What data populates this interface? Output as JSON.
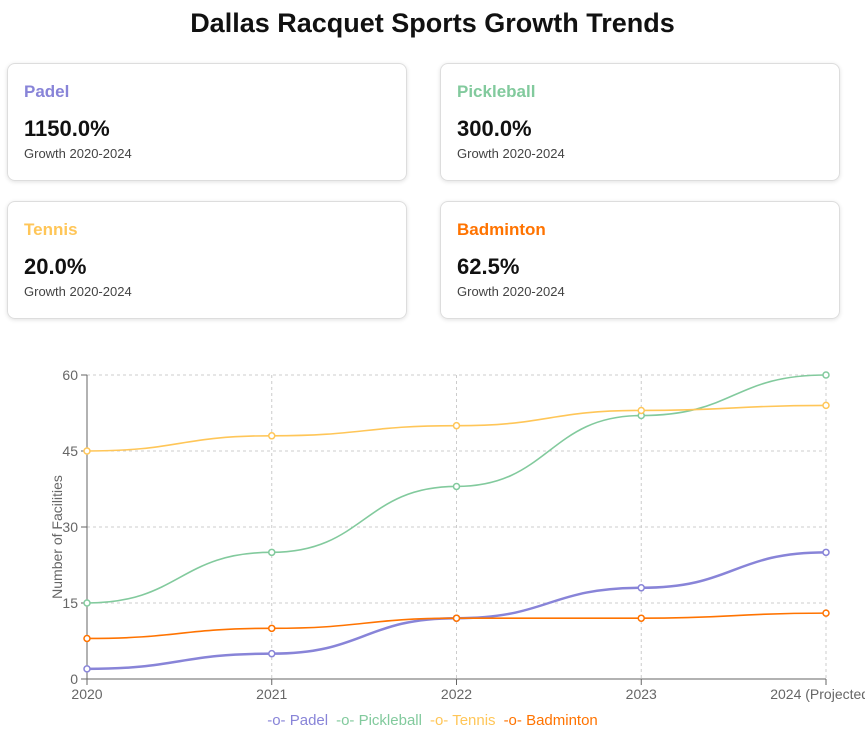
{
  "title": "Dallas Racquet Sports Growth Trends",
  "cards": [
    {
      "name": "Padel",
      "value": "1150.0%",
      "sub": "Growth 2020-2024",
      "color": "#8884d8"
    },
    {
      "name": "Pickleball",
      "value": "300.0%",
      "sub": "Growth 2020-2024",
      "color": "#82ca9d"
    },
    {
      "name": "Tennis",
      "value": "20.0%",
      "sub": "Growth 2020-2024",
      "color": "#ffc658"
    },
    {
      "name": "Badminton",
      "value": "62.5%",
      "sub": "Growth 2020-2024",
      "color": "#ff7300"
    }
  ],
  "chart_data": {
    "type": "line",
    "categories": [
      "2020",
      "2021",
      "2022",
      "2023",
      "2024 (Projected)"
    ],
    "ylabel": "Number of Facilities",
    "ylim": [
      0,
      60
    ],
    "yticks": [
      0,
      15,
      30,
      45,
      60
    ],
    "grid": true,
    "legend": "bottom",
    "series": [
      {
        "name": "Padel",
        "color": "#8884d8",
        "values": [
          2,
          5,
          12,
          18,
          25
        ]
      },
      {
        "name": "Pickleball",
        "color": "#82ca9d",
        "values": [
          15,
          25,
          38,
          52,
          60
        ]
      },
      {
        "name": "Tennis",
        "color": "#ffc658",
        "values": [
          45,
          48,
          50,
          53,
          54
        ]
      },
      {
        "name": "Badminton",
        "color": "#ff7300",
        "values": [
          8,
          10,
          12,
          12,
          13
        ]
      }
    ]
  }
}
